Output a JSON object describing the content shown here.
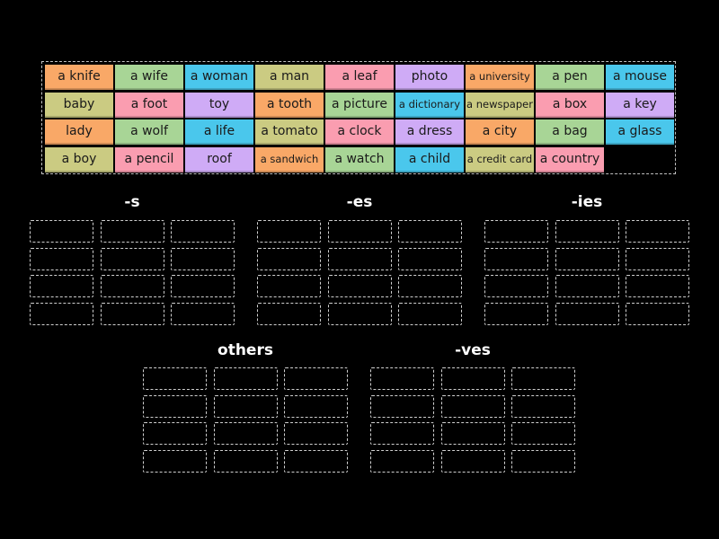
{
  "colors": {
    "orange": "#f9a867",
    "green": "#a8d596",
    "blue": "#4ac7ec",
    "olive": "#cbcb82",
    "pink": "#fa9db0",
    "purple": "#cfabf6"
  },
  "cards": [
    {
      "label": "a knife",
      "color": "orange"
    },
    {
      "label": "a wife",
      "color": "green"
    },
    {
      "label": "a woman",
      "color": "blue"
    },
    {
      "label": "a man",
      "color": "olive"
    },
    {
      "label": "a leaf",
      "color": "pink"
    },
    {
      "label": "photo",
      "color": "purple"
    },
    {
      "label": "a university",
      "color": "orange",
      "small": true
    },
    {
      "label": "a pen",
      "color": "green"
    },
    {
      "label": "a mouse",
      "color": "blue"
    },
    {
      "label": "baby",
      "color": "olive"
    },
    {
      "label": "a foot",
      "color": "pink"
    },
    {
      "label": "toy",
      "color": "purple"
    },
    {
      "label": "a tooth",
      "color": "orange"
    },
    {
      "label": "a picture",
      "color": "green"
    },
    {
      "label": "a dictionary",
      "color": "blue",
      "small": true
    },
    {
      "label": "a newspaper",
      "color": "olive",
      "small": true
    },
    {
      "label": "a box",
      "color": "pink"
    },
    {
      "label": "a key",
      "color": "purple"
    },
    {
      "label": "lady",
      "color": "orange"
    },
    {
      "label": "a wolf",
      "color": "green"
    },
    {
      "label": "a life",
      "color": "blue"
    },
    {
      "label": "a tomato",
      "color": "olive"
    },
    {
      "label": "a clock",
      "color": "pink"
    },
    {
      "label": "a dress",
      "color": "purple"
    },
    {
      "label": "a city",
      "color": "orange"
    },
    {
      "label": "a bag",
      "color": "green"
    },
    {
      "label": "a glass",
      "color": "blue"
    },
    {
      "label": "a boy",
      "color": "olive"
    },
    {
      "label": "a pencil",
      "color": "pink"
    },
    {
      "label": "roof",
      "color": "purple"
    },
    {
      "label": "a sandwich",
      "color": "orange",
      "small": true
    },
    {
      "label": "a watch",
      "color": "green"
    },
    {
      "label": "a child",
      "color": "blue"
    },
    {
      "label": "a credit card",
      "color": "olive",
      "small": true
    },
    {
      "label": "a country",
      "color": "pink"
    }
  ],
  "groups": [
    {
      "title": "-s"
    },
    {
      "title": "-es"
    },
    {
      "title": "-ies"
    },
    {
      "title": "others"
    },
    {
      "title": "-ves"
    }
  ]
}
